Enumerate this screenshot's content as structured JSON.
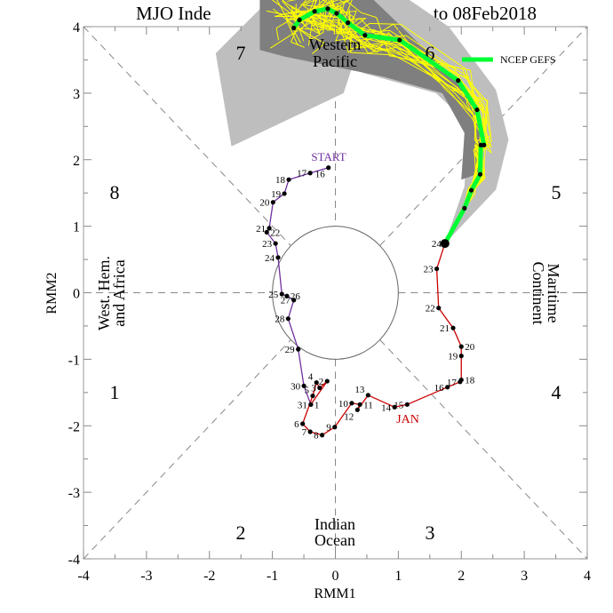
{
  "chart_data": {
    "type": "line",
    "title_left": "MJO Inde",
    "title_right": "to 08Feb2018",
    "xlabel": "RMM1",
    "ylabel": "RMM2",
    "xlim": [
      -4,
      4
    ],
    "ylim": [
      -4,
      4
    ],
    "xticks": [
      -4,
      -3,
      -2,
      -1,
      0,
      1,
      2,
      3,
      4
    ],
    "yticks": [
      -4,
      -3,
      -2,
      -1,
      0,
      1,
      2,
      3,
      4
    ],
    "unit_circle_radius": 1,
    "phase_labels": [
      {
        "label": "1",
        "x": -3.5,
        "y": -1.5
      },
      {
        "label": "2",
        "x": -1.5,
        "y": -3.6
      },
      {
        "label": "3",
        "x": 1.5,
        "y": -3.6
      },
      {
        "label": "4",
        "x": 3.5,
        "y": -1.5
      },
      {
        "label": "5",
        "x": 3.5,
        "y": 1.5
      },
      {
        "label": "6",
        "x": 1.5,
        "y": 3.6
      },
      {
        "label": "7",
        "x": -1.5,
        "y": 3.6
      },
      {
        "label": "8",
        "x": -3.5,
        "y": 1.5
      }
    ],
    "region_labels": {
      "west_hem": [
        "West. Hem.",
        "and Africa"
      ],
      "maritime": [
        "Maritime",
        "Continent"
      ],
      "indian": [
        "Indian",
        "Ocean"
      ],
      "western_pacific": [
        "Western",
        "Pacific"
      ]
    },
    "start_label": "START",
    "month_label_jan": "JAN",
    "legend": {
      "label": "NCEP GEFS",
      "color": "#00ff33",
      "placement": "top-right"
    },
    "colors": {
      "december": "#7030a0",
      "january": "#cc0000",
      "forecast": "#00ff33",
      "ensemble_member": "#ffff00",
      "spread_outer": "#bebebe",
      "spread_inner": "#7f7f7f"
    },
    "series": [
      {
        "name": "December",
        "color_key": "december",
        "points": [
          {
            "day": "16",
            "x": -0.11,
            "y": 1.88
          },
          {
            "day": "17",
            "x": -0.4,
            "y": 1.8
          },
          {
            "day": "18",
            "x": -0.74,
            "y": 1.7
          },
          {
            "day": "19",
            "x": -0.81,
            "y": 1.49
          },
          {
            "day": "20",
            "x": -0.99,
            "y": 1.36
          },
          {
            "day": "21",
            "x": -1.05,
            "y": 0.97
          },
          {
            "day": "22",
            "x": -1.09,
            "y": 0.91
          },
          {
            "day": "23",
            "x": -0.95,
            "y": 0.74
          },
          {
            "day": "24",
            "x": -0.91,
            "y": 0.53
          },
          {
            "day": "25",
            "x": -0.85,
            "y": -0.02
          },
          {
            "day": "26",
            "x": -0.77,
            "y": -0.05
          },
          {
            "day": "27",
            "x": -0.66,
            "y": -0.11
          },
          {
            "day": "28",
            "x": -0.75,
            "y": -0.39
          },
          {
            "day": "29",
            "x": -0.59,
            "y": -0.85
          },
          {
            "day": "30",
            "x": -0.5,
            "y": -1.4
          },
          {
            "day": "31",
            "x": -0.39,
            "y": -1.68
          }
        ]
      },
      {
        "name": "January",
        "color_key": "january",
        "points": [
          {
            "day": "1",
            "x": -0.39,
            "y": -1.68
          },
          {
            "day": "2",
            "x": -0.13,
            "y": -1.33
          },
          {
            "day": "3",
            "x": -0.25,
            "y": -1.43
          },
          {
            "day": "4",
            "x": -0.3,
            "y": -1.35
          },
          {
            "day": "5",
            "x": -0.36,
            "y": -1.55
          },
          {
            "day": "6",
            "x": -0.52,
            "y": -1.97
          },
          {
            "day": "7",
            "x": -0.4,
            "y": -2.09
          },
          {
            "day": "8",
            "x": -0.21,
            "y": -2.14
          },
          {
            "day": "9",
            "x": -0.01,
            "y": -2.02
          },
          {
            "day": "10",
            "x": 0.26,
            "y": -1.66
          },
          {
            "day": "11",
            "x": 0.39,
            "y": -1.68
          },
          {
            "day": "12",
            "x": 0.35,
            "y": -1.76
          },
          {
            "day": "13",
            "x": 0.52,
            "y": -1.54
          },
          {
            "day": "14",
            "x": 0.94,
            "y": -1.72
          },
          {
            "day": "15",
            "x": 1.14,
            "y": -1.68
          },
          {
            "day": "16",
            "x": 1.78,
            "y": -1.42
          },
          {
            "day": "17",
            "x": 1.98,
            "y": -1.34
          },
          {
            "day": "18",
            "x": 2.0,
            "y": -1.31
          },
          {
            "day": "19",
            "x": 2.0,
            "y": -0.95
          },
          {
            "day": "20",
            "x": 2.0,
            "y": -0.81
          },
          {
            "day": "21",
            "x": 1.87,
            "y": -0.53
          },
          {
            "day": "22",
            "x": 1.64,
            "y": -0.23
          },
          {
            "day": "23",
            "x": 1.61,
            "y": 0.36
          },
          {
            "day": "24",
            "x": 1.74,
            "y": 0.74
          }
        ]
      },
      {
        "name": "NCEP GEFS",
        "color_key": "forecast",
        "points": [
          {
            "x": 1.74,
            "y": 0.74
          },
          {
            "x": 2.05,
            "y": 1.27
          },
          {
            "x": 2.16,
            "y": 1.54
          },
          {
            "x": 2.3,
            "y": 1.78
          },
          {
            "x": 2.31,
            "y": 2.22
          },
          {
            "x": 2.36,
            "y": 2.22
          },
          {
            "x": 2.25,
            "y": 2.75
          },
          {
            "x": 1.95,
            "y": 3.19
          },
          {
            "x": 1.02,
            "y": 3.8
          },
          {
            "x": 0.47,
            "y": 3.87
          },
          {
            "x": 0.2,
            "y": 4.06
          },
          {
            "x": 0.02,
            "y": 4.2
          },
          {
            "x": -0.12,
            "y": 4.27
          },
          {
            "x": -0.33,
            "y": 4.23
          },
          {
            "x": -0.57,
            "y": 4.1
          },
          {
            "x": -0.66,
            "y": 3.98
          }
        ]
      }
    ],
    "ensemble_spread": {
      "outer": [
        [
          -0.95,
          4.5
        ],
        [
          -1.9,
          3.6
        ],
        [
          -1.65,
          2.2
        ],
        [
          0.13,
          3.0
        ],
        [
          0.27,
          3.4
        ],
        [
          0.45,
          3.3
        ],
        [
          1.6,
          3.0
        ],
        [
          2.1,
          2.55
        ],
        [
          2.05,
          1.6
        ],
        [
          1.74,
          0.74
        ],
        [
          2.55,
          1.55
        ],
        [
          2.75,
          2.3
        ],
        [
          2.55,
          3.05
        ],
        [
          1.8,
          4.0
        ],
        [
          1.1,
          4.45
        ]
      ],
      "inner": [
        [
          -1.2,
          4.5
        ],
        [
          -1.2,
          3.65
        ],
        [
          -0.8,
          3.55
        ],
        [
          0.75,
          3.25
        ],
        [
          1.7,
          3.0
        ],
        [
          2.05,
          2.4
        ],
        [
          2.0,
          1.7
        ],
        [
          2.3,
          1.8
        ],
        [
          2.35,
          2.4
        ],
        [
          2.15,
          2.95
        ],
        [
          1.6,
          3.5
        ],
        [
          0.5,
          4.5
        ]
      ]
    }
  }
}
